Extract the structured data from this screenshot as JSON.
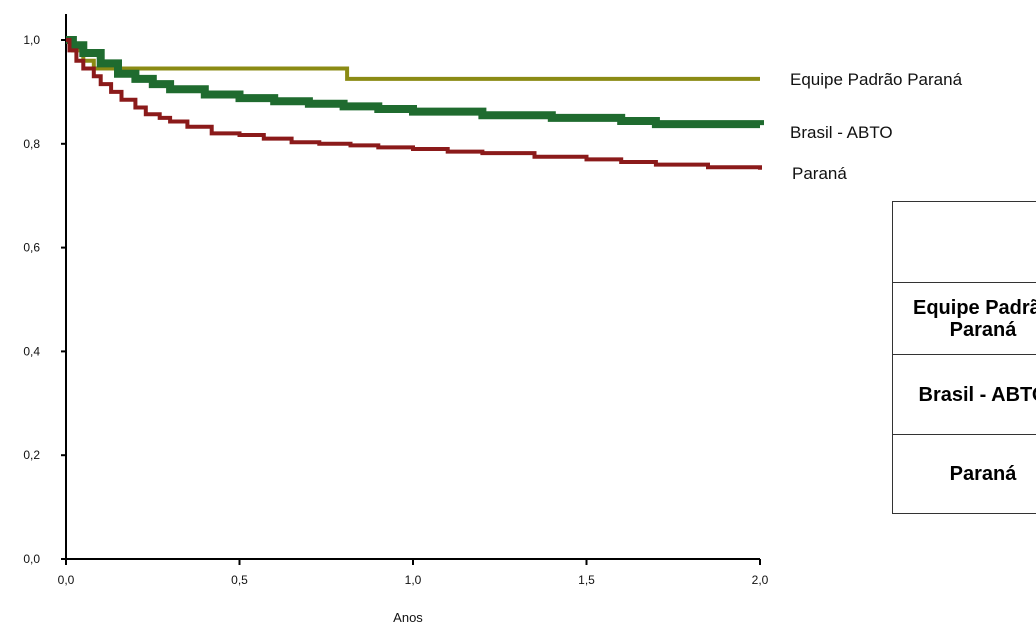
{
  "chart_data": {
    "type": "line",
    "step": true,
    "xlabel": "Anos",
    "ylabel": "",
    "xlim": [
      0,
      2
    ],
    "ylim": [
      0,
      1
    ],
    "xticks": [
      "0,0",
      "0,5",
      "1,0",
      "1,5",
      "2,0"
    ],
    "yticks": [
      "0,0",
      "0,2",
      "0,4",
      "0,6",
      "0,8",
      "1,0"
    ],
    "grid": false,
    "legend_position": "right",
    "series": [
      {
        "name": "Equipe Padrão Paraná",
        "color": "#8b8b14",
        "points": [
          [
            0,
            1.0
          ],
          [
            0.02,
            0.98
          ],
          [
            0.05,
            0.96
          ],
          [
            0.08,
            0.945
          ],
          [
            0.81,
            0.945
          ],
          [
            0.81,
            0.925
          ],
          [
            2.0,
            0.925
          ]
        ]
      },
      {
        "name": "Brasil - ABTO",
        "color": "#1f6b2f",
        "points": [
          [
            0,
            1.0
          ],
          [
            0.02,
            0.99
          ],
          [
            0.05,
            0.975
          ],
          [
            0.1,
            0.955
          ],
          [
            0.15,
            0.935
          ],
          [
            0.2,
            0.925
          ],
          [
            0.25,
            0.915
          ],
          [
            0.3,
            0.905
          ],
          [
            0.4,
            0.895
          ],
          [
            0.5,
            0.888
          ],
          [
            0.6,
            0.882
          ],
          [
            0.7,
            0.877
          ],
          [
            0.8,
            0.872
          ],
          [
            0.9,
            0.867
          ],
          [
            1.0,
            0.862
          ],
          [
            1.2,
            0.855
          ],
          [
            1.4,
            0.85
          ],
          [
            1.6,
            0.844
          ],
          [
            1.7,
            0.838
          ],
          [
            2.0,
            0.836
          ]
        ]
      },
      {
        "name": "Paraná",
        "color": "#8b1a1a",
        "points": [
          [
            0,
            1.0
          ],
          [
            0.01,
            0.98
          ],
          [
            0.03,
            0.96
          ],
          [
            0.05,
            0.945
          ],
          [
            0.08,
            0.93
          ],
          [
            0.1,
            0.915
          ],
          [
            0.13,
            0.9
          ],
          [
            0.16,
            0.885
          ],
          [
            0.2,
            0.87
          ],
          [
            0.23,
            0.857
          ],
          [
            0.27,
            0.85
          ],
          [
            0.3,
            0.843
          ],
          [
            0.35,
            0.833
          ],
          [
            0.42,
            0.82
          ],
          [
            0.5,
            0.817
          ],
          [
            0.57,
            0.81
          ],
          [
            0.65,
            0.803
          ],
          [
            0.73,
            0.8
          ],
          [
            0.82,
            0.797
          ],
          [
            0.9,
            0.793
          ],
          [
            1.0,
            0.79
          ],
          [
            1.1,
            0.785
          ],
          [
            1.2,
            0.782
          ],
          [
            1.35,
            0.775
          ],
          [
            1.5,
            0.77
          ],
          [
            1.6,
            0.765
          ],
          [
            1.7,
            0.76
          ],
          [
            1.85,
            0.755
          ],
          [
            2.0,
            0.75
          ]
        ]
      }
    ]
  },
  "table": {
    "header": "",
    "rows": [
      "Equipe Padrão Paraná",
      "Brasil - ABTO",
      "Paraná"
    ]
  }
}
